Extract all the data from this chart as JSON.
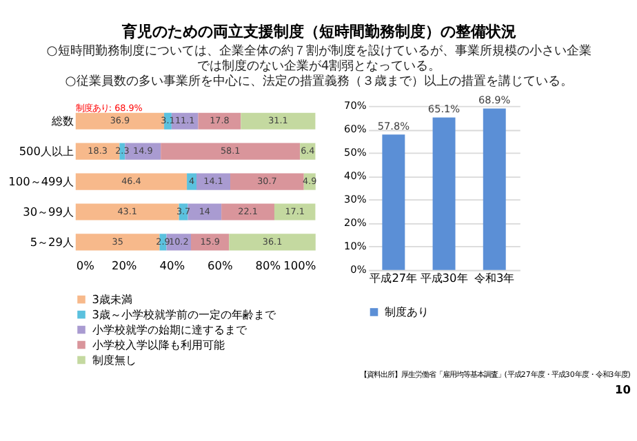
{
  "chart_data": [
    {
      "type": "bar",
      "orientation": "horizontal",
      "stacked": true,
      "title": "育児のための両立支援制度（短時間勤務制度）の整備状況",
      "categories": [
        "総数",
        "500人以上",
        "100～499人",
        "30～99人",
        "5～29人"
      ],
      "series": [
        {
          "name": "3歳未満",
          "color": "#f7b98b",
          "values": [
            36.9,
            18.3,
            46.4,
            43.1,
            35
          ]
        },
        {
          "name": "3歳～小学校就学前の一定の年齢まで",
          "color": "#5bc1de",
          "values": [
            3.1,
            2.3,
            4,
            3.7,
            2.9
          ]
        },
        {
          "name": "小学校就学の始期に達するまで",
          "color": "#a99bd1",
          "values": [
            11.1,
            14.9,
            14.1,
            14,
            10.2
          ]
        },
        {
          "name": "小学校入学以降も利用可能",
          "color": "#d9959b",
          "values": [
            17.8,
            58.1,
            30.7,
            22.1,
            15.9
          ]
        },
        {
          "name": "制度無し",
          "color": "#c4d9a0",
          "values": [
            31.1,
            6.4,
            4.9,
            17.1,
            36.1
          ]
        }
      ],
      "xlim": [
        0,
        100
      ],
      "xticks": [
        {
          "value": 0,
          "label": "0%"
        },
        {
          "value": 20,
          "label": "20%"
        },
        {
          "value": 40,
          "label": "40%"
        },
        {
          "value": 60,
          "label": "60%"
        },
        {
          "value": 80,
          "label": "80%"
        },
        {
          "value": 100,
          "label": "100%"
        }
      ],
      "data_labels": true,
      "legend": "bottom",
      "grid": false,
      "annotations": [
        "○短時間勤務制度については、企業全体の約７割が制度を設けているが、事業所規模の小さい企業では制度のない企業が4割弱となっている。",
        "○従業員数の多い事業所を中心に、法定の措置義務（３歳まで）以上の措置を講じている。",
        {
          "text": "制度あり: 68.9%",
          "x": 0,
          "y": "総数"
        },
        "【資料出所】厚生労働省「雇用均等基本調査」(平成27年度・平成30年度・令和3年度)",
        "10"
      ]
    },
    {
      "type": "bar",
      "categories": [
        "平成27年",
        "平成30年",
        "令和3年"
      ],
      "series": [
        {
          "name": "制度あり",
          "color": "#5b8fd6",
          "values": [
            57.8,
            65.1,
            68.9
          ],
          "value_labels": [
            "57.8%",
            "65.1%",
            "68.9%"
          ]
        }
      ],
      "ylim": [
        0,
        70
      ],
      "yticks": [
        {
          "value": 0,
          "label": "0%"
        },
        {
          "value": 10,
          "label": "10%"
        },
        {
          "value": 20,
          "label": "20%"
        },
        {
          "value": 30,
          "label": "30%"
        },
        {
          "value": 40,
          "label": "40%"
        },
        {
          "value": 50,
          "label": "50%"
        },
        {
          "value": 60,
          "label": "60%"
        },
        {
          "value": 70,
          "label": "70%"
        }
      ],
      "grid": "y",
      "legend": "bottom"
    }
  ]
}
